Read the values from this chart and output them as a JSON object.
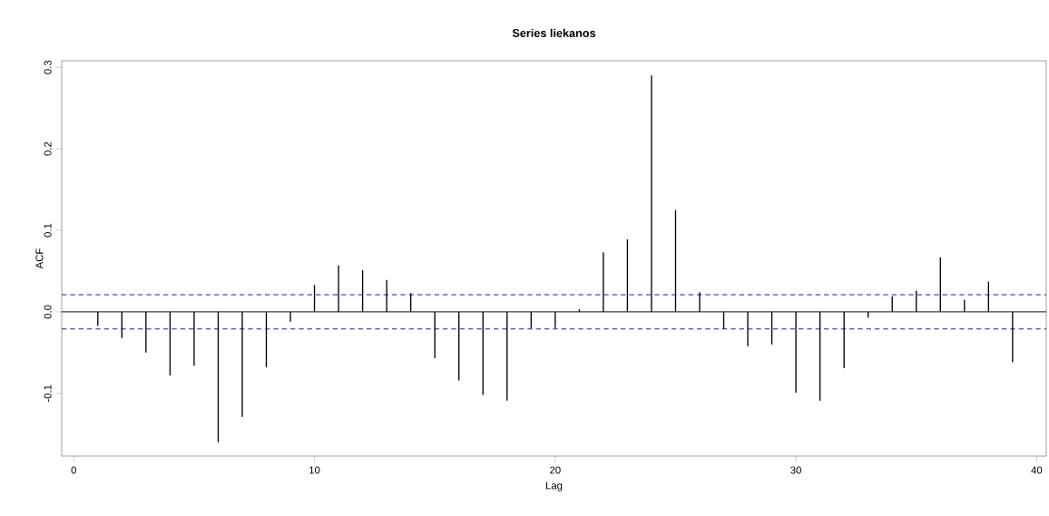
{
  "chart_data": {
    "type": "bar",
    "title": "**Series liekanos**",
    "xlabel": "Lag",
    "ylabel": "ACF",
    "x": [
      1,
      2,
      3,
      4,
      5,
      6,
      7,
      8,
      9,
      10,
      11,
      12,
      13,
      14,
      15,
      16,
      17,
      18,
      19,
      20,
      21,
      22,
      23,
      24,
      25,
      26,
      27,
      28,
      29,
      30,
      31,
      32,
      33,
      34,
      35,
      36,
      37,
      38,
      39
    ],
    "values": [
      -0.017,
      -0.032,
      -0.05,
      -0.078,
      -0.066,
      -0.16,
      -0.129,
      -0.068,
      -0.012,
      0.033,
      0.057,
      0.051,
      0.039,
      0.023,
      -0.057,
      -0.084,
      -0.102,
      -0.109,
      -0.02,
      -0.02,
      0.003,
      0.073,
      0.089,
      0.29,
      0.125,
      0.024,
      -0.021,
      -0.042,
      -0.04,
      -0.099,
      -0.109,
      -0.069,
      -0.007,
      0.019,
      0.026,
      0.067,
      0.015,
      0.037,
      -0.062
    ],
    "color": "#000000",
    "xlim": [
      -0.5,
      40.4
    ],
    "ylim": [
      -0.177,
      0.308
    ],
    "xticks": [
      0,
      10,
      20,
      30,
      40
    ],
    "yticks": [
      {
        "value": -0.1,
        "label": "-0.1"
      },
      {
        "value": 0,
        "label": "0.0"
      },
      {
        "value": 0.1,
        "label": "0.1"
      },
      {
        "value": 0.2,
        "label": "0.2"
      },
      {
        "value": 0.3,
        "label": "0.3"
      }
    ],
    "ref_lines": [
      {
        "axis": "y",
        "value": 0,
        "color": "#000000",
        "line_style": "solid"
      },
      {
        "axis": "y",
        "value": 0.021,
        "color": "#0000ff",
        "line_style": "dashed"
      },
      {
        "axis": "y",
        "value": -0.021,
        "color": "#0000ff",
        "line_style": "dashed"
      }
    ]
  }
}
